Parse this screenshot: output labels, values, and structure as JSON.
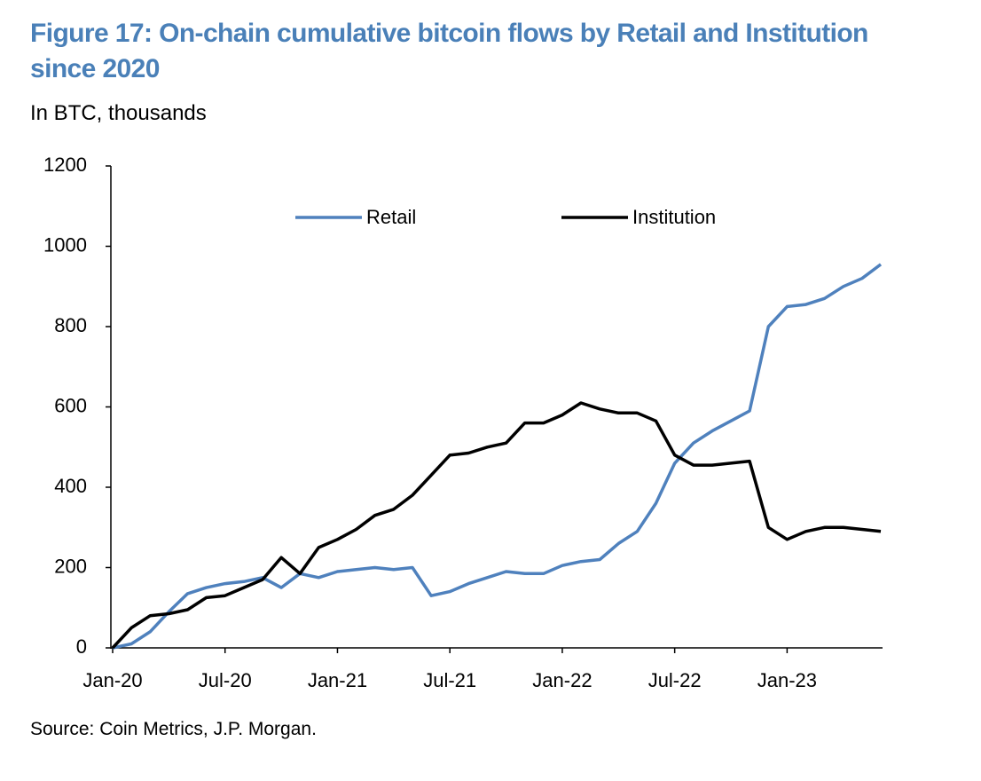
{
  "chart_data": {
    "type": "line",
    "title": "Figure 17: On-chain cumulative bitcoin flows by Retail and Institution since 2020",
    "subtitle": "In BTC, thousands",
    "source": "Source: Coin Metrics, J.P. Morgan.",
    "categories": [
      "Jan-20",
      null,
      null,
      null,
      null,
      null,
      "Jul-20",
      null,
      null,
      null,
      null,
      null,
      "Jan-21",
      null,
      null,
      null,
      null,
      null,
      "Jul-21",
      null,
      null,
      null,
      null,
      null,
      "Jan-22",
      null,
      null,
      null,
      null,
      null,
      "Jul-22",
      null,
      null,
      null,
      null,
      null,
      "Jan-23",
      null,
      null,
      null,
      null,
      null
    ],
    "series": [
      {
        "name": "Retail",
        "color": "#4f81bd",
        "values": [
          0,
          10,
          40,
          90,
          135,
          150,
          160,
          165,
          175,
          150,
          185,
          175,
          190,
          195,
          200,
          195,
          200,
          130,
          140,
          160,
          175,
          190,
          185,
          185,
          205,
          215,
          220,
          260,
          290,
          360,
          460,
          510,
          540,
          565,
          590,
          800,
          850,
          855,
          870,
          900,
          920,
          955
        ]
      },
      {
        "name": "Institution",
        "color": "#000000",
        "values": [
          0,
          50,
          80,
          85,
          95,
          125,
          130,
          150,
          170,
          225,
          185,
          250,
          270,
          295,
          330,
          345,
          380,
          430,
          480,
          485,
          500,
          510,
          560,
          560,
          580,
          610,
          595,
          585,
          585,
          565,
          480,
          455,
          455,
          460,
          465,
          300,
          270,
          290,
          300,
          300,
          295,
          290
        ]
      }
    ],
    "ylim": [
      0,
      1200
    ],
    "yticks": [
      0,
      200,
      400,
      600,
      800,
      1000,
      1200
    ],
    "grid": false,
    "legend": "top"
  }
}
